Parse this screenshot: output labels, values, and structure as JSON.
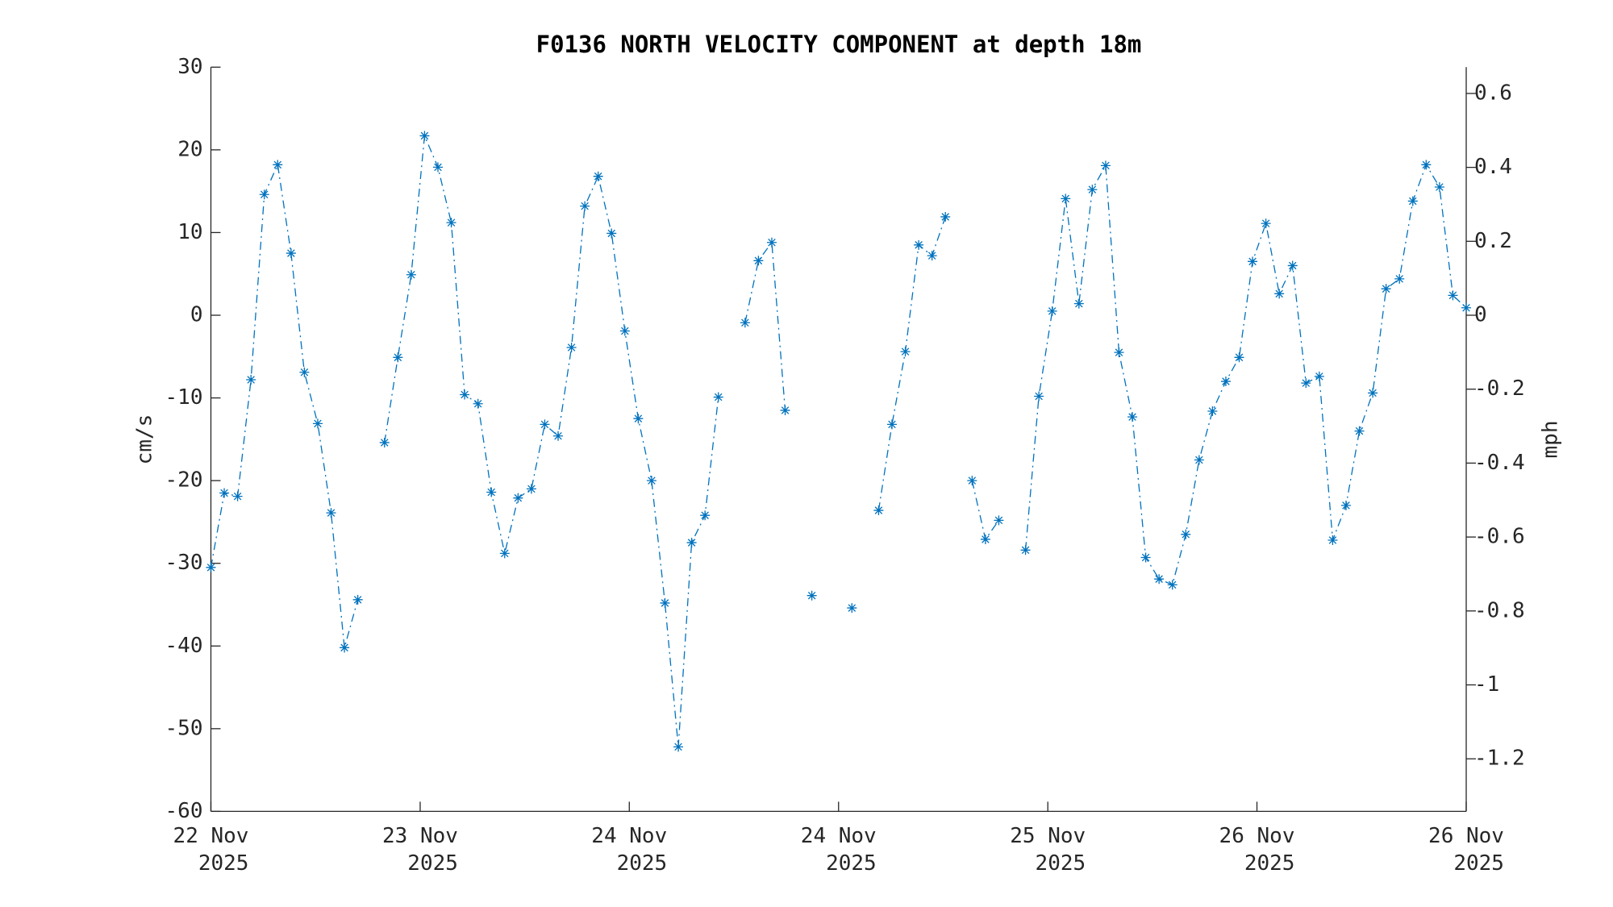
{
  "chart_data": {
    "type": "line",
    "title": "F0136 NORTH VELOCITY COMPONENT at depth 18m",
    "ylabel": "cm/s",
    "y2label": "mph",
    "x": [
      0,
      1,
      2,
      3,
      4,
      5,
      6,
      7,
      8,
      9,
      10,
      11,
      12,
      13,
      14,
      15,
      16,
      17,
      18,
      19,
      20,
      21,
      22,
      23,
      24,
      25,
      26,
      27,
      28,
      29,
      30,
      31,
      32,
      33,
      34,
      35,
      36,
      37,
      38,
      39,
      40,
      41,
      42,
      43,
      44,
      45,
      46,
      47,
      48,
      49,
      50,
      51,
      52,
      53,
      54,
      55,
      56,
      57,
      58,
      59,
      60,
      61,
      62,
      63,
      64,
      65,
      66,
      67,
      68,
      69,
      70,
      71,
      72,
      73,
      74,
      75,
      76,
      77,
      78,
      79,
      80,
      81,
      82,
      83,
      84,
      85,
      86,
      87,
      88,
      89,
      90,
      91,
      92,
      93,
      94
    ],
    "series": [
      {
        "name": "north velocity",
        "color": "#0072bd",
        "values": [
          -30.5,
          -21.5,
          -21.9,
          -7.8,
          14.6,
          18.2,
          7.5,
          -6.9,
          -13.1,
          -23.9,
          -40.2,
          -34.4,
          null,
          -15.4,
          -5.1,
          4.9,
          21.7,
          17.9,
          11.2,
          -9.6,
          -10.7,
          -21.4,
          -28.8,
          -22.1,
          -21.0,
          -13.2,
          -14.6,
          -3.9,
          13.2,
          16.8,
          9.9,
          -1.9,
          -12.5,
          -20,
          -34.8,
          -52.2,
          -27.5,
          -24.2,
          -9.9,
          null,
          -0.9,
          6.6,
          8.8,
          -11.5,
          null,
          -33.9,
          null,
          null,
          -35.4,
          null,
          -23.6,
          -13.2,
          -4.4,
          8.5,
          7.2,
          11.9,
          null,
          -20,
          -27.1,
          -24.8,
          null,
          -28.4,
          -9.8,
          0.5,
          14.1,
          1.4,
          15.2,
          18.1,
          -4.5,
          -12.3,
          -29.3,
          -31.9,
          -32.6,
          -26.5,
          -17.5,
          -11.6,
          -8,
          -5.1,
          6.5,
          11.1,
          2.6,
          6,
          -8.2,
          -7.4,
          -27.2,
          -23,
          -14,
          -9.4,
          3.2,
          4.4,
          13.8,
          18.2,
          15.5,
          2.4,
          0.9
        ]
      }
    ],
    "xlim": [
      0,
      94
    ],
    "xticks": [
      {
        "value": 0,
        "label": "22 Nov\n2025"
      },
      {
        "value": 15.67,
        "label": "23 Nov\n2025"
      },
      {
        "value": 31.33,
        "label": "24 Nov\n2025"
      },
      {
        "value": 47,
        "label": "24 Nov\n2025"
      },
      {
        "value": 62.67,
        "label": "25 Nov\n2025"
      },
      {
        "value": 78.33,
        "label": "26 Nov\n2025"
      },
      {
        "value": 94,
        "label": "26 Nov\n2025"
      }
    ],
    "ylim": [
      -60,
      30
    ],
    "yticks": [
      -60,
      -50,
      -40,
      -30,
      -20,
      -10,
      0,
      10,
      20,
      30
    ],
    "y2lim": [
      -1.3422,
      0.6711
    ],
    "y2ticks": [
      -1.2,
      -1,
      -0.8,
      -0.6,
      -0.4,
      -0.2,
      0,
      0.2,
      0.4,
      0.6
    ],
    "line_style": "dash-dot",
    "marker": "asterisk",
    "grid": false
  }
}
